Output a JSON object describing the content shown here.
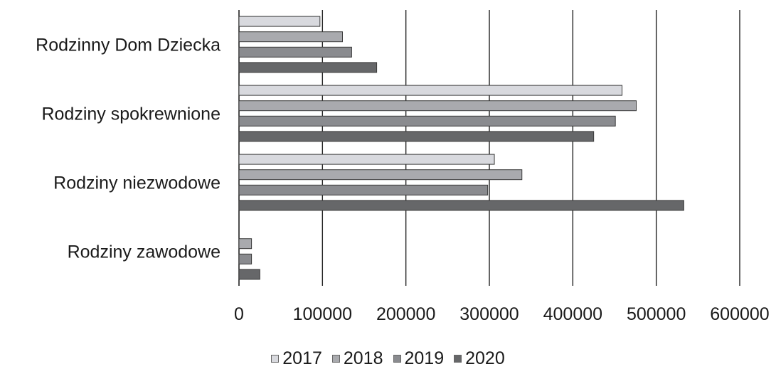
{
  "chart_data": {
    "type": "bar",
    "orientation": "horizontal",
    "categories": [
      "Rodzinny Dom Dziecka",
      "Rodziny spokrewnione",
      "Rodziny niezwodowe",
      "Rodziny zawodowe"
    ],
    "series": [
      {
        "name": "2017",
        "color": "#d8d9de",
        "values": [
          97000,
          459000,
          306000,
          0
        ]
      },
      {
        "name": "2018",
        "color": "#a9aaae",
        "values": [
          124000,
          476000,
          339000,
          15000
        ]
      },
      {
        "name": "2019",
        "color": "#8a8b8f",
        "values": [
          135000,
          451000,
          298000,
          15000
        ]
      },
      {
        "name": "2020",
        "color": "#666769",
        "values": [
          165000,
          425000,
          533000,
          25000
        ]
      }
    ],
    "xticks": [
      "0",
      "100000",
      "200000",
      "300000",
      "400000",
      "500000",
      "600000"
    ],
    "xlim": [
      0,
      600000
    ],
    "grid": true,
    "legend_position": "bottom",
    "title": "",
    "xlabel": "",
    "ylabel": ""
  }
}
